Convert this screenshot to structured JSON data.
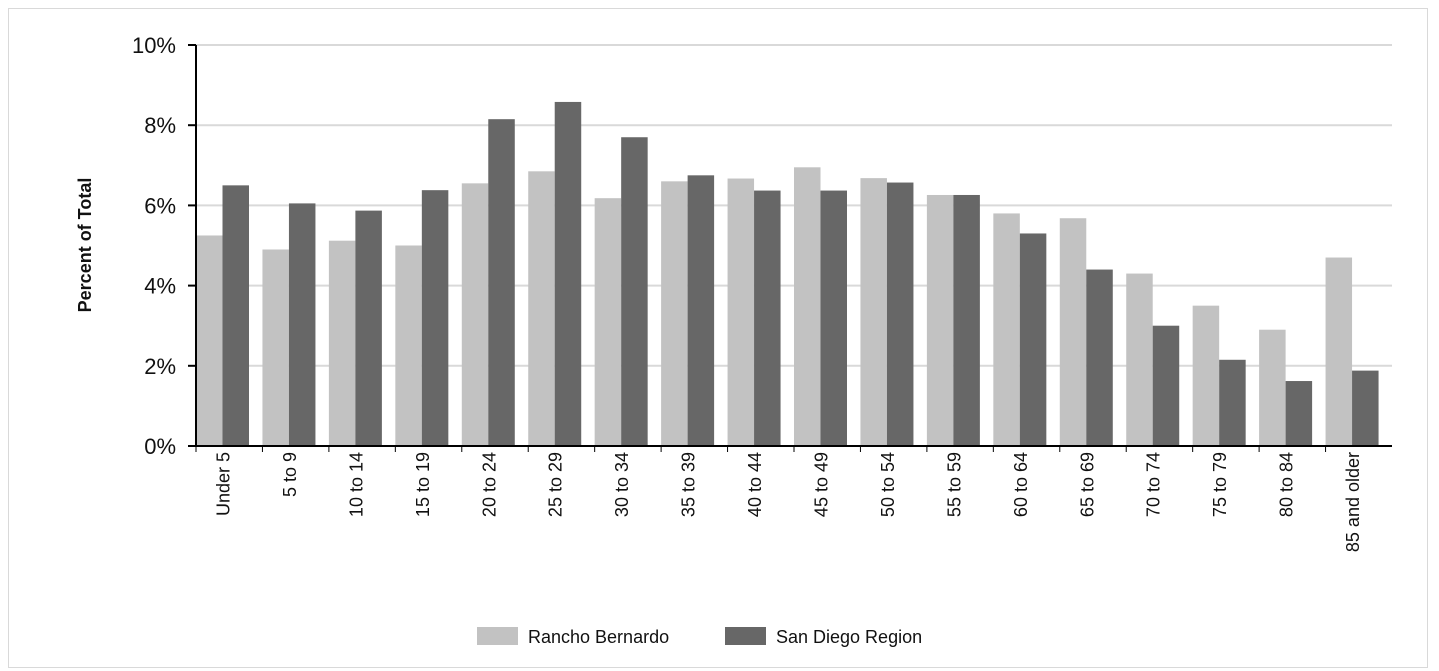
{
  "chart_data": {
    "type": "bar",
    "ylabel": "Percent of Total",
    "ylim": [
      0,
      10
    ],
    "yticks": [
      "0%",
      "2%",
      "4%",
      "6%",
      "8%",
      "10%"
    ],
    "grid": true,
    "legend_position": "bottom-center",
    "categories": [
      "Under 5",
      "5 to 9",
      "10 to 14",
      "15 to 19",
      "20 to 24",
      "25 to 29",
      "30 to 34",
      "35 to 39",
      "40 to 44",
      "45 to 49",
      "50 to 54",
      "55 to 59",
      "60 to 64",
      "65 to 69",
      "70 to 74",
      "75 to 79",
      "80 to 84",
      "85 and older"
    ],
    "series": [
      {
        "name": "Rancho Bernardo",
        "color": "#c2c2c2",
        "values": [
          5.25,
          4.9,
          5.12,
          5.0,
          6.55,
          6.85,
          6.18,
          6.6,
          6.67,
          6.95,
          6.68,
          6.26,
          5.8,
          5.68,
          4.3,
          3.5,
          2.9,
          4.7
        ]
      },
      {
        "name": "San Diego Region",
        "color": "#676767",
        "values": [
          6.5,
          6.05,
          5.87,
          6.38,
          8.15,
          8.58,
          7.7,
          6.75,
          6.37,
          6.37,
          6.57,
          6.26,
          5.3,
          4.4,
          3.0,
          2.15,
          1.62,
          1.88
        ]
      }
    ]
  }
}
